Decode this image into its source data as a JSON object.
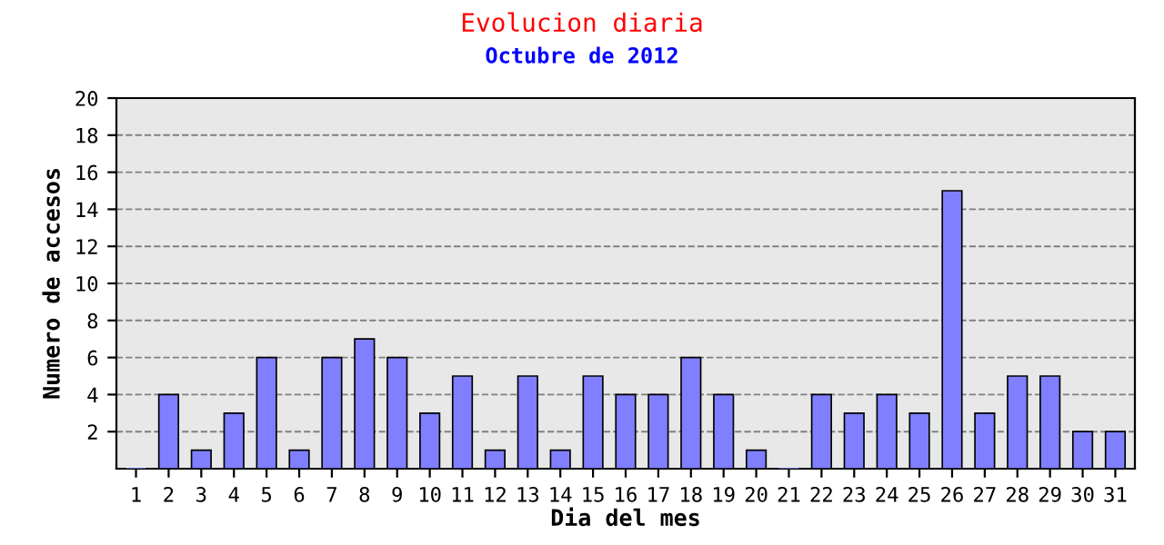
{
  "chart_data": {
    "type": "bar",
    "title": "Evolucion diaria",
    "subtitle": "Octubre de 2012",
    "xlabel": "Dia del mes",
    "ylabel": "Numero de accesos",
    "categories": [
      "1",
      "2",
      "3",
      "4",
      "5",
      "6",
      "7",
      "8",
      "9",
      "10",
      "11",
      "12",
      "13",
      "14",
      "15",
      "16",
      "17",
      "18",
      "19",
      "20",
      "21",
      "22",
      "23",
      "24",
      "25",
      "26",
      "27",
      "28",
      "29",
      "30",
      "31"
    ],
    "values": [
      0,
      4,
      1,
      3,
      6,
      1,
      6,
      7,
      6,
      3,
      5,
      1,
      5,
      1,
      5,
      4,
      4,
      6,
      4,
      1,
      0,
      4,
      3,
      4,
      3,
      15,
      3,
      5,
      5,
      2,
      2
    ],
    "color": "#7f7fff",
    "ylim": [
      0,
      20
    ],
    "yticks": [
      2,
      4,
      6,
      8,
      10,
      12,
      14,
      16,
      18,
      20
    ],
    "grid": "y"
  }
}
